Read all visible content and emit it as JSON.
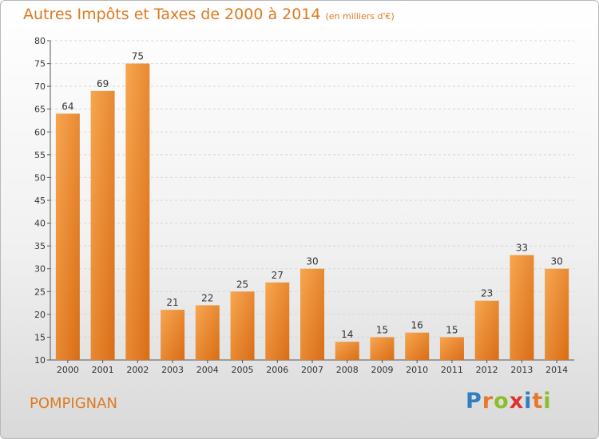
{
  "chart_data": {
    "type": "bar",
    "title": "Autres Impôts et Taxes de 2000 à 2014",
    "subtitle": "(en milliers d'€)",
    "categories": [
      "2000",
      "2001",
      "2002",
      "2003",
      "2004",
      "2005",
      "2006",
      "2007",
      "2008",
      "2009",
      "2010",
      "2011",
      "2012",
      "2013",
      "2014"
    ],
    "values": [
      64,
      69,
      75,
      21,
      22,
      25,
      27,
      30,
      14,
      15,
      16,
      15,
      23,
      33,
      30
    ],
    "ylim": [
      10,
      80
    ],
    "yticks": [
      10,
      15,
      20,
      25,
      30,
      35,
      40,
      45,
      50,
      55,
      60,
      65,
      70,
      75,
      80
    ],
    "grid": true,
    "bar_color": "#f0952f"
  },
  "footer": {
    "city": "POMPIGNAN",
    "logo_letters": [
      "P",
      "r",
      "o",
      "x",
      "i",
      "t",
      "i"
    ],
    "logo_colors": [
      "#2f7fc1",
      "#e8782a",
      "#8bbf2a",
      "#e2312d",
      "#2f7fc1",
      "#e8782a",
      "#8bbf2a"
    ]
  }
}
